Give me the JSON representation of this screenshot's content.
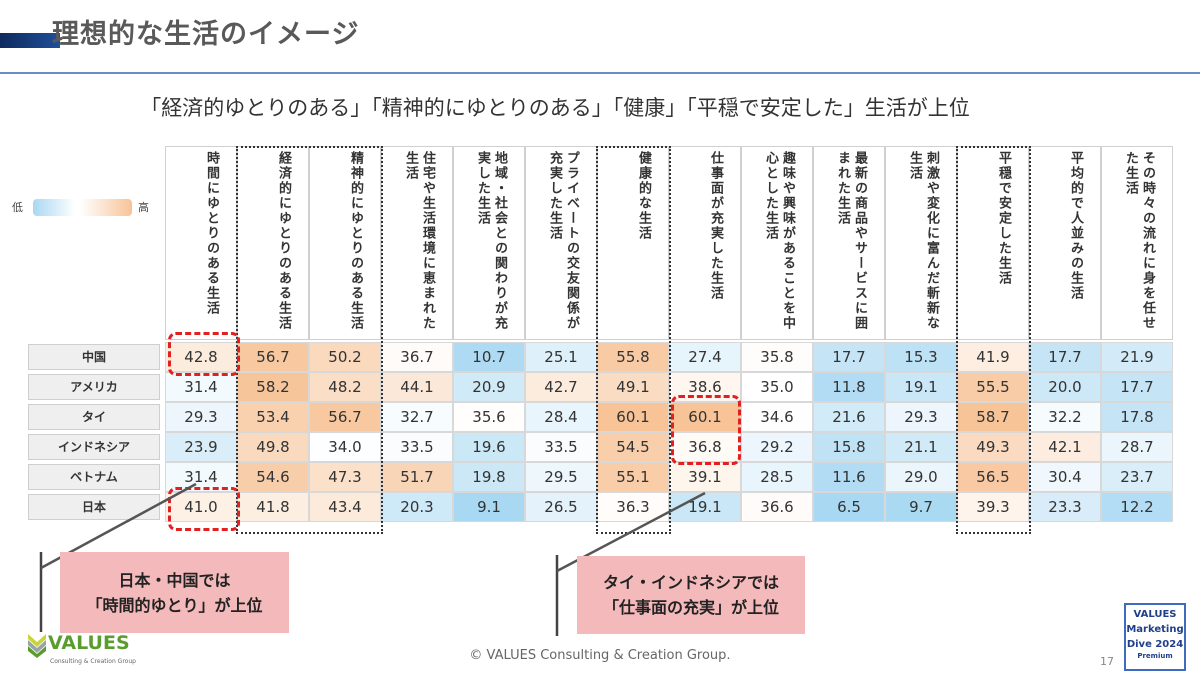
{
  "title": "理想的な生活のイメージ",
  "subtitle": "「経済的ゆとりのある」「精神的にゆとりのある」「健康」「平穏で安定した」生活が上位",
  "legend": {
    "low": "低",
    "high": "高",
    "low_color": "#a8d8f2",
    "high_color": "#f7c397"
  },
  "columns": [
    "時間にゆとりのある生活",
    "経済的にゆとりのある生活",
    "精神的にゆとりのある生活",
    "住宅や生活環境に恵まれた生活",
    "地域・社会との関わりが充実した生活",
    "プライベートの交友関係が充実した生活",
    "健康的な生活",
    "仕事面が充実した生活",
    "趣味や興味があることを中心とした生活",
    "最新の商品やサービスに囲まれた生活",
    "刺激や変化に富んだ斬新な生活",
    "平穏で安定した生活",
    "平均的で人並みの生活",
    "その時々の流れに身を任せた生活"
  ],
  "rows": [
    {
      "label": "中国",
      "values": [
        42.8,
        56.7,
        50.2,
        36.7,
        10.7,
        25.1,
        55.8,
        27.4,
        35.8,
        17.7,
        15.3,
        41.9,
        17.7,
        21.9
      ]
    },
    {
      "label": "アメリカ",
      "values": [
        31.4,
        58.2,
        48.2,
        44.1,
        20.9,
        42.7,
        49.1,
        38.6,
        35.0,
        11.8,
        19.1,
        55.5,
        20.0,
        17.7
      ]
    },
    {
      "label": "タイ",
      "values": [
        29.3,
        53.4,
        56.7,
        32.7,
        35.6,
        28.4,
        60.1,
        60.1,
        34.6,
        21.6,
        29.3,
        58.7,
        32.2,
        17.8
      ]
    },
    {
      "label": "インドネシア",
      "values": [
        23.9,
        49.8,
        34.0,
        33.5,
        19.6,
        33.5,
        54.5,
        36.8,
        29.2,
        15.8,
        21.1,
        49.3,
        42.1,
        28.7
      ]
    },
    {
      "label": "ベトナム",
      "values": [
        31.4,
        54.6,
        47.3,
        51.7,
        19.8,
        29.5,
        55.1,
        39.1,
        28.5,
        11.6,
        29.0,
        56.5,
        30.4,
        23.7
      ]
    },
    {
      "label": "日本",
      "values": [
        41.0,
        41.8,
        43.4,
        20.3,
        9.1,
        26.5,
        36.3,
        19.1,
        36.6,
        6.5,
        9.7,
        39.3,
        23.3,
        12.2
      ]
    }
  ],
  "callouts": [
    {
      "line1": "日本・中国では",
      "line2": "「時間的ゆとり」が上位"
    },
    {
      "line1": "タイ・インドネシアでは",
      "line2": "「仕事面の充実」が上位"
    }
  ],
  "footer": {
    "copyright": "© VALUES Consulting & Creation Group.",
    "logo_text": "VALUES",
    "logo_sub": "Consulting & Creation Group",
    "badge": [
      "VALUES",
      "Marketing",
      "Dive 2024",
      "Premium"
    ],
    "page_number": "17"
  }
}
